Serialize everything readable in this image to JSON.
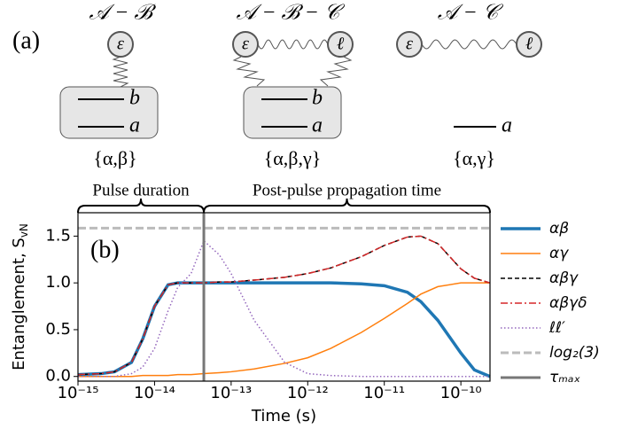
{
  "diagram": {
    "panel_label": "(a)",
    "groups": [
      {
        "title": "𝒜 − ℬ",
        "photon": "ε",
        "upper": "b",
        "lower": "a",
        "set": "{α,β}"
      },
      {
        "title": "𝒜 − ℬ − 𝒞",
        "photon": "ε",
        "phonon": "ℓ",
        "upper": "b",
        "lower": "a",
        "set": "{α,β,γ}"
      },
      {
        "title": "𝒜 − 𝒞",
        "photon": "ε",
        "phonon": "ℓ",
        "lower": "a",
        "set": "{α,γ}"
      }
    ]
  },
  "chart_data": {
    "type": "line",
    "panel_label": "(b)",
    "xlabel": "Time (s)",
    "ylabel": "Entanglement, S",
    "ylabel_sub": "vN",
    "annotations": [
      "Pulse duration",
      "Post-pulse propagation time"
    ],
    "log_x": true,
    "xlim": [
      1e-15,
      2.4e-10
    ],
    "ylim": [
      -0.05,
      1.75
    ],
    "xticks": [
      {
        "value": 1e-15,
        "label": "10⁻¹⁵"
      },
      {
        "value": 1e-14,
        "label": "10⁻¹⁴"
      },
      {
        "value": 1e-13,
        "label": "10⁻¹³"
      },
      {
        "value": 1e-12,
        "label": "10⁻¹²"
      },
      {
        "value": 1e-11,
        "label": "10⁻¹¹"
      },
      {
        "value": 1e-10,
        "label": "10⁻¹⁰"
      }
    ],
    "yticks": [
      {
        "value": 0,
        "label": "0.0"
      },
      0.5,
      {
        "value": 1,
        "label": "1.0"
      },
      1.5
    ],
    "x": [
      1e-15,
      2e-15,
      3e-15,
      5e-15,
      7e-15,
      1e-14,
      1.5e-14,
      2e-14,
      3e-14,
      4.4e-14,
      7e-14,
      1e-13,
      2e-13,
      5e-13,
      1e-12,
      2e-12,
      5e-12,
      1e-11,
      2e-11,
      3e-11,
      5e-11,
      1e-10,
      1.5e-10,
      2.4e-10
    ],
    "series": [
      {
        "name": "αβ",
        "color": "#1f77b4",
        "width": 3.5,
        "dash": "",
        "values": [
          0.02,
          0.03,
          0.05,
          0.15,
          0.4,
          0.75,
          0.98,
          1.0,
          1.0,
          1.0,
          1.0,
          1.0,
          1.0,
          1.0,
          1.0,
          1.0,
          0.99,
          0.97,
          0.9,
          0.8,
          0.6,
          0.25,
          0.07,
          0.0
        ]
      },
      {
        "name": "αγ",
        "color": "#ff7f0e",
        "width": 1.5,
        "dash": "",
        "values": [
          0.0,
          0.0,
          0.0,
          0.0,
          0.01,
          0.01,
          0.01,
          0.02,
          0.02,
          0.03,
          0.04,
          0.05,
          0.08,
          0.14,
          0.2,
          0.3,
          0.47,
          0.62,
          0.78,
          0.88,
          0.96,
          1.0,
          1.0,
          1.0
        ]
      },
      {
        "name": "αβγ",
        "color": "#000000",
        "width": 1.5,
        "dash": "5 3",
        "values": [
          0.02,
          0.03,
          0.05,
          0.15,
          0.4,
          0.75,
          0.98,
          1.0,
          1.0,
          1.0,
          1.01,
          1.01,
          1.03,
          1.06,
          1.1,
          1.16,
          1.28,
          1.4,
          1.49,
          1.5,
          1.42,
          1.15,
          1.05,
          1.0
        ]
      },
      {
        "name": "αβγδ",
        "color": "#d62728",
        "width": 1.5,
        "dash": "8 3 2 3",
        "values": [
          0.02,
          0.03,
          0.05,
          0.15,
          0.4,
          0.75,
          0.98,
          1.0,
          1.0,
          1.0,
          1.01,
          1.01,
          1.03,
          1.06,
          1.1,
          1.16,
          1.28,
          1.4,
          1.49,
          1.5,
          1.42,
          1.15,
          1.05,
          1.0
        ]
      },
      {
        "name": "ℓℓ′",
        "color": "#9467bd",
        "width": 1.5,
        "dash": "1.5 2.5",
        "values": [
          0,
          0,
          0,
          0.03,
          0.1,
          0.3,
          0.7,
          0.95,
          1.1,
          1.45,
          1.3,
          1.1,
          0.6,
          0.15,
          0.03,
          0.01,
          0,
          0,
          0,
          0,
          0,
          0,
          0,
          0
        ]
      }
    ],
    "hlines": [
      {
        "name": "log₂(3)",
        "value": 1.585,
        "color": "#bbbbbb",
        "width": 3,
        "dash": "9 4"
      }
    ],
    "vlines": [
      {
        "name": "τₘₐₓ",
        "value": 4.4e-14,
        "color": "#777777",
        "width": 3,
        "dash": ""
      }
    ]
  }
}
